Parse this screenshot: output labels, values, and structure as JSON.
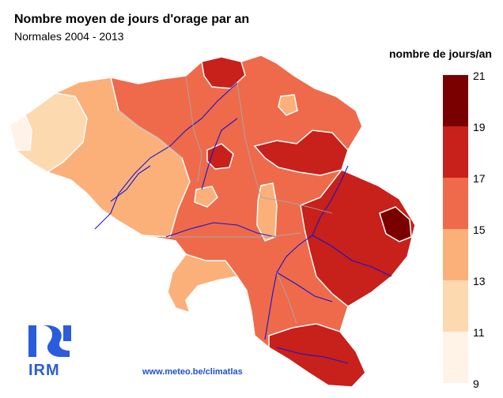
{
  "header": {
    "title": "Nombre moyen de jours d'orage par an",
    "subtitle": "Normales 2004 - 2013"
  },
  "legend": {
    "title": "nombre de jours/an",
    "classes": [
      {
        "from": 19,
        "to": 21,
        "color": "#7a0000"
      },
      {
        "from": 17,
        "to": 19,
        "color": "#c8201a"
      },
      {
        "from": 15,
        "to": 17,
        "color": "#ee6a4a"
      },
      {
        "from": 13,
        "to": 15,
        "color": "#fbb07a"
      },
      {
        "from": 11,
        "to": 13,
        "color": "#fdd9b0"
      },
      {
        "from": 9,
        "to": 11,
        "color": "#fff3e8"
      }
    ],
    "ticks": [
      "21",
      "19",
      "17",
      "15",
      "13",
      "11",
      "9"
    ]
  },
  "footer": {
    "url": "www.meteo.be/climatlas",
    "logo_text": "IRM"
  },
  "colors": {
    "border_white": "#ffffff",
    "rivers": "#1515d0",
    "admin_borders": "#a8a8a8",
    "logo_blue": "#2a5cdc"
  }
}
